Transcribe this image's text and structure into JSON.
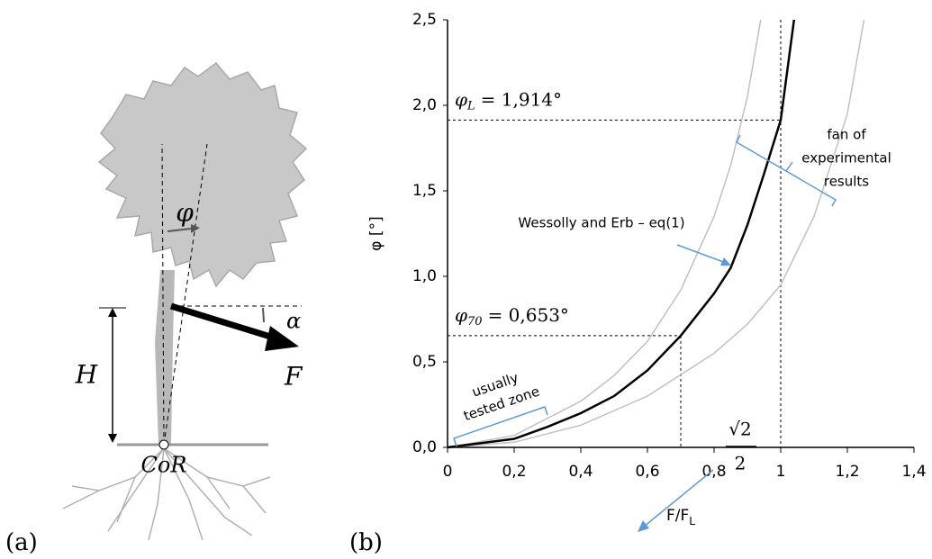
{
  "panels": [
    "(a)",
    "(b)"
  ],
  "diagram": {
    "labels": {
      "phi": "φ",
      "alpha": "α",
      "H": "H",
      "F": "F",
      "CoR": "CoR"
    }
  },
  "chart_data": {
    "type": "line",
    "ylabel": "φ  [°]",
    "xlabel": "F/F",
    "xlabel_subscript": "L",
    "xlim": [
      0,
      1.4
    ],
    "ylim": [
      0,
      2.5
    ],
    "xticks": [
      0,
      {
        "value": 0.2,
        "label": "0,2"
      },
      {
        "value": 0.4,
        "label": "0,4"
      },
      {
        "value": 0.6,
        "label": "0,6"
      },
      {
        "value": 0.8,
        "label": "0,8"
      },
      1,
      {
        "value": 1.2,
        "label": "1,2"
      },
      {
        "value": 1.4,
        "label": "1,4"
      }
    ],
    "yticks": [
      {
        "value": 0,
        "label": "0,0"
      },
      {
        "value": 0.5,
        "label": "0,5"
      },
      {
        "value": 1,
        "label": "1,0"
      },
      {
        "value": 1.5,
        "label": "1,5"
      },
      {
        "value": 2,
        "label": "2,0"
      },
      {
        "value": 2.5,
        "label": "2,5"
      }
    ],
    "series": [
      {
        "name": "Wessolly and Erb – eq(1)",
        "color": "#000000",
        "x": [
          0,
          0.2,
          0.3,
          0.4,
          0.5,
          0.6,
          0.7,
          0.8,
          0.85,
          0.9,
          0.95,
          1.0,
          1.04
        ],
        "values": [
          0,
          0.05,
          0.12,
          0.2,
          0.3,
          0.45,
          0.653,
          0.9,
          1.05,
          1.3,
          1.6,
          1.914,
          2.5
        ]
      },
      {
        "color": "#c0c0c0",
        "x": [
          0,
          0.2,
          0.4,
          0.5,
          0.6,
          0.7,
          0.8,
          0.85,
          0.9,
          0.94
        ],
        "values": [
          0,
          0.07,
          0.27,
          0.42,
          0.62,
          0.92,
          1.35,
          1.65,
          2.05,
          2.5
        ]
      },
      {
        "color": "#c0c0c0",
        "x": [
          0,
          0.2,
          0.4,
          0.6,
          0.8,
          0.9,
          1.0,
          1.1,
          1.2,
          1.25
        ],
        "values": [
          0,
          0.03,
          0.13,
          0.3,
          0.55,
          0.72,
          0.95,
          1.35,
          1.95,
          2.5
        ]
      }
    ],
    "annotations": [
      {
        "symbol": "φ",
        "subscript": "L",
        "text": "= 1,914°",
        "x": 1,
        "y": 1.914
      },
      {
        "symbol": "φ",
        "subscript": "70",
        "text": "= 0,653°",
        "x": 0.7,
        "y": 0.653
      },
      {
        "lines": [
          "fan of",
          "experimental",
          "results"
        ]
      },
      {
        "lines": [
          "usually",
          "tested zone"
        ]
      },
      {
        "numerator": "√2",
        "denominator": "2"
      }
    ]
  }
}
